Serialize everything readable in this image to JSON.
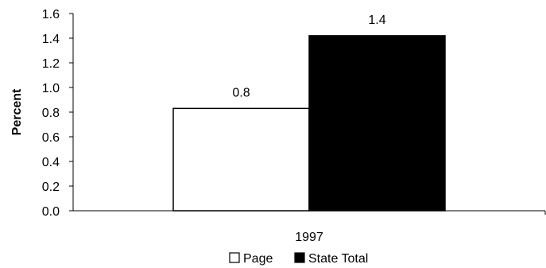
{
  "chart_data": {
    "type": "bar",
    "title": "",
    "xlabel": "",
    "ylabel": "Percent",
    "categories": [
      "1997"
    ],
    "series": [
      {
        "name": "Page",
        "values": [
          0.83
        ],
        "label": "0.8",
        "color": "#ffffff"
      },
      {
        "name": "State Total",
        "values": [
          1.42
        ],
        "label": "1.4",
        "color": "#000000"
      }
    ],
    "ylim": [
      0,
      1.6
    ],
    "yticks": [
      "0.0",
      "0.2",
      "0.4",
      "0.6",
      "0.8",
      "1.0",
      "1.2",
      "1.4",
      "1.6"
    ],
    "grid": false,
    "legend_position": "bottom"
  }
}
